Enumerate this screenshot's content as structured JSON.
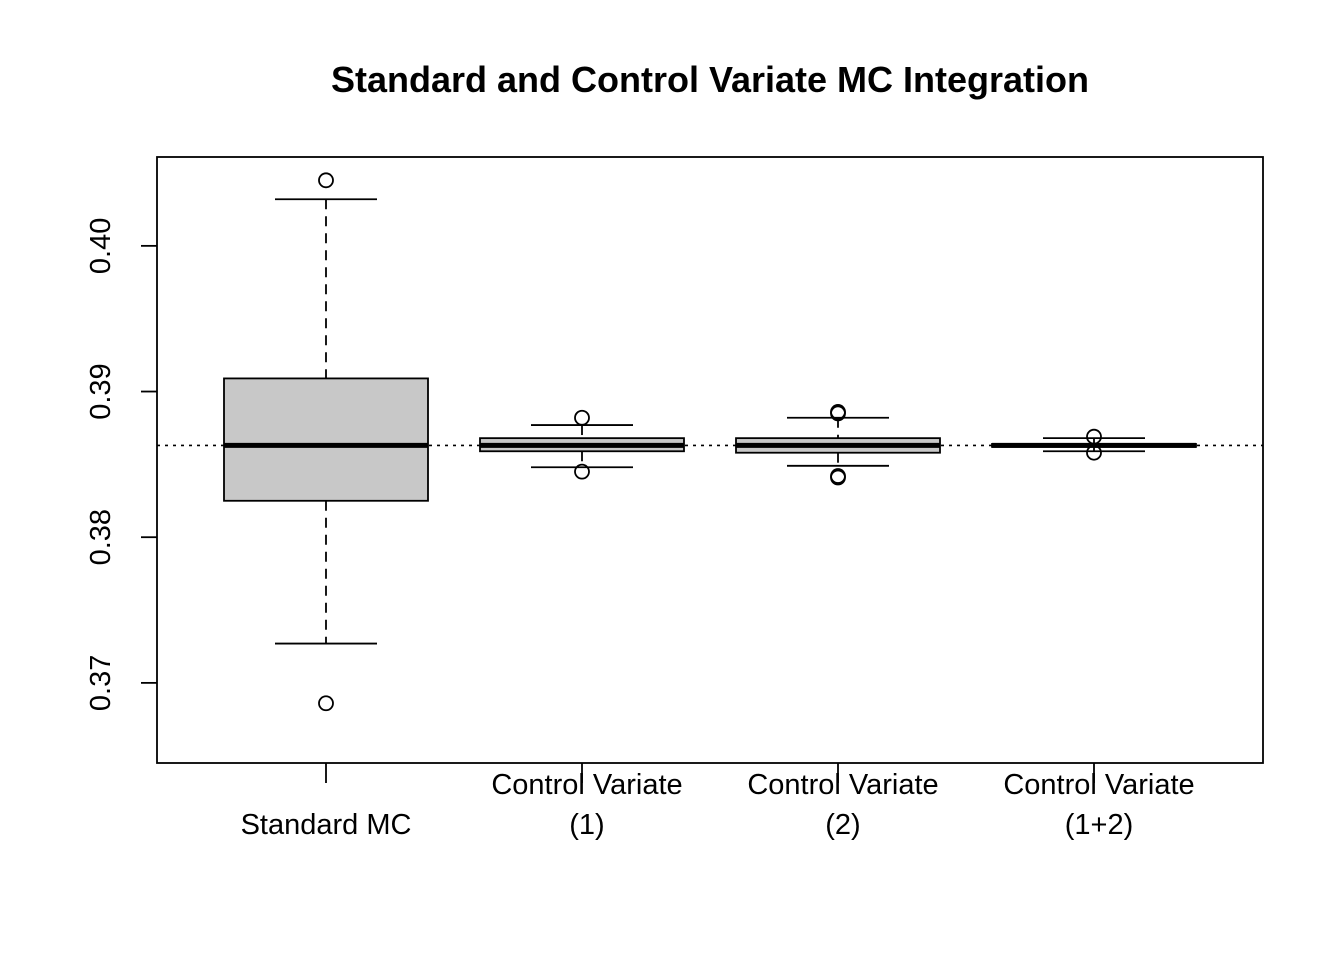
{
  "chart_data": {
    "type": "box",
    "title": "Standard and Control Variate MC Integration",
    "xlabel": "",
    "ylabel": "",
    "ylim": [
      0.3645,
      0.4061
    ],
    "yticks": [
      0.37,
      0.38,
      0.39,
      0.4
    ],
    "ytick_labels": [
      "0.37",
      "0.38",
      "0.39",
      "0.40"
    ],
    "reference_line": 0.3863,
    "box_fill": "#c8c8c8",
    "groups": [
      {
        "label_lines": [
          "Standard MC"
        ],
        "whisker_low": 0.3727,
        "q1": 0.3825,
        "median": 0.3863,
        "q3": 0.3909,
        "whisker_high": 0.4032,
        "outliers": [
          0.4045,
          0.3686
        ]
      },
      {
        "label_lines": [
          "Control Variate",
          "(1)"
        ],
        "whisker_low": 0.3848,
        "q1": 0.3859,
        "median": 0.3863,
        "q3": 0.3868,
        "whisker_high": 0.3877,
        "outliers": [
          0.3882,
          0.3845
        ]
      },
      {
        "label_lines": [
          "Control Variate",
          "(2)"
        ],
        "whisker_low": 0.3849,
        "q1": 0.3858,
        "median": 0.3863,
        "q3": 0.3868,
        "whisker_high": 0.3882,
        "outliers": [
          0.3886,
          0.3885,
          0.3842,
          0.3841
        ]
      },
      {
        "label_lines": [
          "Control Variate",
          "(1+2)"
        ],
        "whisker_low": 0.3859,
        "q1": 0.3862,
        "median": 0.3863,
        "q3": 0.3864,
        "whisker_high": 0.3868,
        "outliers": [
          0.3869,
          0.3858
        ]
      }
    ]
  }
}
